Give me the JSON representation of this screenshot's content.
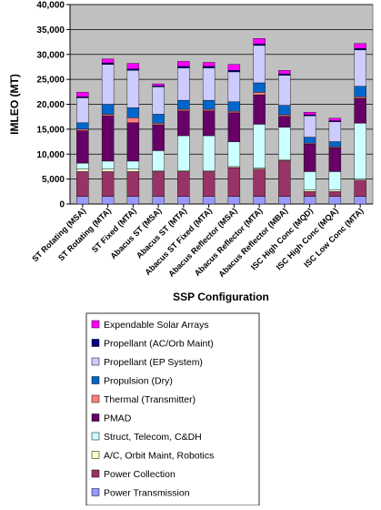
{
  "chart_data": {
    "type": "bar",
    "stacked": true,
    "xlabel": "SSP Configuration",
    "ylabel": "IMLEO (MT)",
    "ylim": [
      0,
      40000
    ],
    "yticks": [
      "0",
      "5,000",
      "10,000",
      "15,000",
      "20,000",
      "25,000",
      "30,000",
      "35,000",
      "40,000"
    ],
    "grid": true,
    "legend_position": "bottom",
    "plot_background": "#c0c0c0",
    "categories": [
      "ST Rotating (MSA)",
      "ST Rotating (MTA)",
      "ST Fixed (MTA)",
      "Abacus ST (MSA)",
      "Abacus ST (MTA)",
      "Abacus ST Fixed (MTA)",
      "Abacus Reflector (MSA)",
      "Abacus Reflector (MTA)",
      "Abacus Reflector (MBA)",
      "ISC High Conc (MQD)",
      "ISC High Conc (MQA)",
      "ISC Low Conc (MTA)"
    ],
    "series": [
      {
        "name": "Power Transmission",
        "color": "#9999ff",
        "values": [
          1500,
          1500,
          1500,
          1500,
          1500,
          1500,
          1500,
          1500,
          1500,
          1500,
          1500,
          1500
        ]
      },
      {
        "name": "Power Collection",
        "color": "#993366",
        "values": [
          5000,
          5000,
          5000,
          5000,
          5000,
          5000,
          5800,
          5500,
          7200,
          1000,
          1000,
          3300
        ]
      },
      {
        "name": "A/C, Orbit Maint, Robotics",
        "color": "#ffffcc",
        "values": [
          500,
          500,
          500,
          200,
          200,
          200,
          200,
          200,
          200,
          300,
          300,
          200
        ]
      },
      {
        "name": "Struct, Telecom, C&DH",
        "color": "#ccffff",
        "values": [
          1200,
          1600,
          1600,
          4000,
          7000,
          7000,
          5000,
          8800,
          6500,
          3700,
          3700,
          11200
        ]
      },
      {
        "name": "PMAD",
        "color": "#660066",
        "values": [
          6500,
          9100,
          7700,
          5200,
          5000,
          5000,
          5800,
          5900,
          2200,
          5500,
          4800,
          5000
        ]
      },
      {
        "name": "Thermal (Transmitter)",
        "color": "#ff8080",
        "values": [
          300,
          300,
          1000,
          300,
          300,
          300,
          300,
          500,
          300,
          200,
          200,
          300
        ]
      },
      {
        "name": "Propulsion (Dry)",
        "color": "#0066cc",
        "values": [
          1300,
          2000,
          2000,
          1800,
          1800,
          1800,
          1900,
          1900,
          1900,
          1200,
          1000,
          2100
        ]
      },
      {
        "name": "Propellant (EP System)",
        "color": "#ccccff",
        "values": [
          5000,
          8000,
          7500,
          5500,
          6500,
          6500,
          6000,
          7500,
          6000,
          4300,
          4000,
          7300
        ]
      },
      {
        "name": "Propellant (AC/Orb Maint)",
        "color": "#000080",
        "values": [
          200,
          300,
          300,
          200,
          300,
          300,
          300,
          300,
          300,
          200,
          200,
          300
        ]
      },
      {
        "name": "Expendable Solar Arrays",
        "color": "#ff00ff",
        "values": [
          900,
          800,
          1100,
          400,
          1000,
          800,
          1200,
          1100,
          700,
          500,
          500,
          1000
        ]
      }
    ]
  }
}
